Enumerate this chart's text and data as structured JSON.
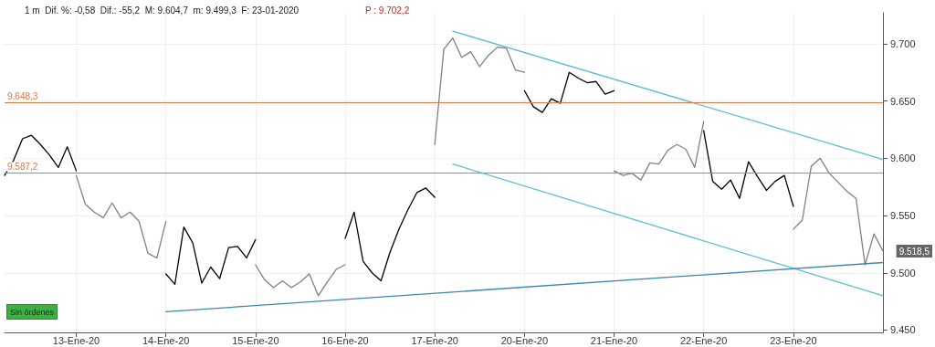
{
  "chart_data": {
    "type": "line",
    "title": "1 m  Dif. %: -0,58  Dif.: -55,2  M: 9.604,7  m: 9.499,3  F: 23-01-2020",
    "subtitle": "P : 9.702,2",
    "categories": [
      null,
      null,
      null,
      null,
      null,
      null,
      null,
      null,
      "13-Ene-20",
      null,
      null,
      null,
      null,
      null,
      null,
      null,
      null,
      null,
      "14-Ene-20",
      null,
      null,
      null,
      null,
      null,
      null,
      null,
      null,
      null,
      "15-Ene-20",
      null,
      null,
      null,
      null,
      null,
      null,
      null,
      null,
      null,
      "16-Ene-20",
      null,
      null,
      null,
      null,
      null,
      null,
      null,
      null,
      null,
      "17-Ene-20",
      null,
      null,
      null,
      null,
      null,
      null,
      null,
      null,
      null,
      "20-Ene-20",
      null,
      null,
      null,
      null,
      null,
      null,
      null,
      null,
      null,
      "21-Ene-20",
      null,
      null,
      null,
      null,
      null,
      null,
      null,
      null,
      null,
      "22-Ene-20",
      null,
      null,
      null,
      null,
      null,
      null,
      null,
      null,
      null,
      "23-Ene-20",
      null,
      null,
      null,
      null,
      null,
      null,
      null,
      null,
      null,
      null
    ],
    "ylim": [
      9448,
      9727
    ],
    "yticks": [
      {
        "value": 9450,
        "label": "9.450"
      },
      {
        "value": 9500,
        "label": "9.500"
      },
      {
        "value": 9550,
        "label": "9.550"
      },
      {
        "value": 9600,
        "label": "9.600"
      },
      {
        "value": 9650,
        "label": "9.650"
      },
      {
        "value": 9700,
        "label": "9.700"
      }
    ],
    "grid": true,
    "marker": "none",
    "series": [
      {
        "color": "#000000",
        "values": [
          9585,
          9598,
          9617,
          9620,
          9612,
          9603,
          9592,
          9610,
          9589,
          null,
          null,
          null,
          null,
          null,
          null,
          null,
          null,
          null,
          null,
          null,
          null,
          null,
          null,
          null,
          null,
          null,
          null,
          null,
          null,
          null,
          null,
          null,
          null,
          null,
          null,
          null,
          null,
          null,
          null,
          null,
          null,
          null,
          null,
          null,
          null,
          null,
          null,
          null,
          null,
          null,
          null,
          null,
          null,
          null,
          null,
          null,
          null,
          null,
          null,
          null,
          null,
          null,
          null,
          null,
          null,
          null,
          null,
          null,
          null,
          null,
          null,
          null,
          null,
          null,
          null,
          null,
          null,
          null,
          null,
          null,
          null,
          null,
          null,
          null,
          null,
          null,
          null,
          null,
          null,
          null,
          null,
          null,
          null,
          null,
          null,
          null,
          null,
          null,
          null
        ]
      },
      {
        "color": "#808080",
        "values": [
          null,
          null,
          null,
          null,
          null,
          null,
          null,
          null,
          9585,
          9560,
          9553,
          9548,
          9561,
          9548,
          9553,
          9545,
          9517,
          9513,
          9545,
          null,
          null,
          null,
          null,
          null,
          null,
          null,
          null,
          null,
          null,
          null,
          null,
          null,
          null,
          null,
          null,
          null,
          null,
          null,
          null,
          null,
          null,
          null,
          null,
          null,
          null,
          null,
          null,
          null,
          null,
          null,
          null,
          null,
          null,
          null,
          null,
          null,
          null,
          null,
          null,
          null,
          null,
          null,
          null,
          null,
          null,
          null,
          null,
          null,
          null,
          null,
          null,
          null,
          null,
          null,
          null,
          null,
          null,
          null,
          null,
          null,
          null,
          null,
          null,
          null,
          null,
          null,
          null,
          null,
          null,
          null,
          null,
          null,
          null,
          null,
          null,
          null,
          null,
          null,
          null
        ]
      },
      {
        "color": "#000000",
        "values": [
          null,
          null,
          null,
          null,
          null,
          null,
          null,
          null,
          null,
          null,
          null,
          null,
          null,
          null,
          null,
          null,
          null,
          null,
          9499,
          9490,
          9540,
          9526,
          9491,
          9505,
          9495,
          9522,
          9523,
          9513,
          9529,
          null,
          null,
          null,
          null,
          null,
          null,
          null,
          null,
          null,
          null,
          null,
          null,
          null,
          null,
          null,
          null,
          null,
          null,
          null,
          null,
          null,
          null,
          null,
          null,
          null,
          null,
          null,
          null,
          null,
          null,
          null,
          null,
          null,
          null,
          null,
          null,
          null,
          null,
          null,
          null,
          null,
          null,
          null,
          null,
          null,
          null,
          null,
          null,
          null,
          null,
          null,
          null,
          null,
          null,
          null,
          null,
          null,
          null,
          null,
          null,
          null,
          null,
          null,
          null,
          null,
          null,
          null,
          null,
          null,
          null
        ]
      },
      {
        "color": "#808080",
        "values": [
          null,
          null,
          null,
          null,
          null,
          null,
          null,
          null,
          null,
          null,
          null,
          null,
          null,
          null,
          null,
          null,
          null,
          null,
          null,
          null,
          null,
          null,
          null,
          null,
          null,
          null,
          null,
          null,
          9507,
          9494,
          9487,
          9493,
          9487,
          9492,
          9499,
          9480,
          9492,
          9503,
          9507,
          null,
          null,
          null,
          null,
          null,
          null,
          null,
          null,
          null,
          null,
          null,
          null,
          null,
          null,
          null,
          null,
          null,
          null,
          null,
          null,
          null,
          null,
          null,
          null,
          null,
          null,
          null,
          null,
          null,
          null,
          null,
          null,
          null,
          null,
          null,
          null,
          null,
          null,
          null,
          null,
          null,
          null,
          null,
          null,
          null,
          null,
          null,
          null,
          null,
          null,
          null,
          null,
          null,
          null,
          null,
          null,
          null,
          null,
          null,
          null
        ]
      },
      {
        "color": "#000000",
        "values": [
          null,
          null,
          null,
          null,
          null,
          null,
          null,
          null,
          null,
          null,
          null,
          null,
          null,
          null,
          null,
          null,
          null,
          null,
          null,
          null,
          null,
          null,
          null,
          null,
          null,
          null,
          null,
          null,
          null,
          null,
          null,
          null,
          null,
          null,
          null,
          null,
          null,
          null,
          9530,
          9553,
          9510,
          9500,
          9493,
          9518,
          9538,
          9555,
          9570,
          9574,
          9566,
          null,
          null,
          null,
          null,
          null,
          null,
          null,
          null,
          null,
          null,
          null,
          null,
          null,
          null,
          null,
          null,
          null,
          null,
          null,
          null,
          null,
          null,
          null,
          null,
          null,
          null,
          null,
          null,
          null,
          null,
          null,
          null,
          null,
          null,
          null,
          null,
          null,
          null,
          null,
          null,
          null,
          null,
          null,
          null,
          null,
          null,
          null,
          null,
          null,
          null
        ]
      },
      {
        "color": "#808080",
        "values": [
          null,
          null,
          null,
          null,
          null,
          null,
          null,
          null,
          null,
          null,
          null,
          null,
          null,
          null,
          null,
          null,
          null,
          null,
          null,
          null,
          null,
          null,
          null,
          null,
          null,
          null,
          null,
          null,
          null,
          null,
          null,
          null,
          null,
          null,
          null,
          null,
          null,
          null,
          null,
          null,
          null,
          null,
          null,
          null,
          null,
          null,
          null,
          null,
          9612,
          9695,
          9705,
          9688,
          9693,
          9680,
          9690,
          9697,
          9696,
          9677,
          9675,
          null,
          null,
          null,
          null,
          null,
          null,
          null,
          null,
          null,
          null,
          null,
          null,
          null,
          null,
          null,
          null,
          null,
          null,
          null,
          null,
          null,
          null,
          null,
          null,
          null,
          null,
          null,
          null,
          null,
          null,
          null,
          null,
          null,
          null,
          null,
          null,
          null,
          null,
          null,
          null
        ]
      },
      {
        "color": "#000000",
        "values": [
          null,
          null,
          null,
          null,
          null,
          null,
          null,
          null,
          null,
          null,
          null,
          null,
          null,
          null,
          null,
          null,
          null,
          null,
          null,
          null,
          null,
          null,
          null,
          null,
          null,
          null,
          null,
          null,
          null,
          null,
          null,
          null,
          null,
          null,
          null,
          null,
          null,
          null,
          null,
          null,
          null,
          null,
          null,
          null,
          null,
          null,
          null,
          null,
          null,
          null,
          null,
          null,
          null,
          null,
          null,
          null,
          null,
          null,
          9659,
          9645,
          9640,
          9652,
          9648,
          9675,
          9670,
          9666,
          9667,
          9656,
          9659,
          null,
          null,
          null,
          null,
          null,
          null,
          null,
          null,
          null,
          null,
          null,
          null,
          null,
          null,
          null,
          null,
          null,
          null,
          null,
          null,
          null,
          null,
          null,
          null,
          null,
          null,
          null,
          null,
          null,
          null
        ]
      },
      {
        "color": "#808080",
        "values": [
          null,
          null,
          null,
          null,
          null,
          null,
          null,
          null,
          null,
          null,
          null,
          null,
          null,
          null,
          null,
          null,
          null,
          null,
          null,
          null,
          null,
          null,
          null,
          null,
          null,
          null,
          null,
          null,
          null,
          null,
          null,
          null,
          null,
          null,
          null,
          null,
          null,
          null,
          null,
          null,
          null,
          null,
          null,
          null,
          null,
          null,
          null,
          null,
          null,
          null,
          null,
          null,
          null,
          null,
          null,
          null,
          null,
          null,
          null,
          null,
          null,
          null,
          null,
          null,
          null,
          null,
          null,
          null,
          9589,
          9585,
          9587,
          9581,
          9596,
          9595,
          9607,
          9612,
          9608,
          9592,
          9632,
          null,
          null,
          null,
          null,
          null,
          null,
          null,
          null,
          null,
          null,
          null,
          null,
          null,
          null,
          null,
          null,
          null,
          null,
          null,
          null
        ]
      },
      {
        "color": "#000000",
        "values": [
          null,
          null,
          null,
          null,
          null,
          null,
          null,
          null,
          null,
          null,
          null,
          null,
          null,
          null,
          null,
          null,
          null,
          null,
          null,
          null,
          null,
          null,
          null,
          null,
          null,
          null,
          null,
          null,
          null,
          null,
          null,
          null,
          null,
          null,
          null,
          null,
          null,
          null,
          null,
          null,
          null,
          null,
          null,
          null,
          null,
          null,
          null,
          null,
          null,
          null,
          null,
          null,
          null,
          null,
          null,
          null,
          null,
          null,
          null,
          null,
          null,
          null,
          null,
          null,
          null,
          null,
          null,
          null,
          null,
          null,
          null,
          null,
          null,
          null,
          null,
          null,
          null,
          null,
          9624,
          9580,
          9573,
          9581,
          9565,
          9597,
          9584,
          9572,
          9580,
          9585,
          9558,
          null,
          null,
          null,
          null,
          null,
          null,
          null,
          null,
          null,
          null
        ]
      },
      {
        "color": "#808080",
        "values": [
          null,
          null,
          null,
          null,
          null,
          null,
          null,
          null,
          null,
          null,
          null,
          null,
          null,
          null,
          null,
          null,
          null,
          null,
          null,
          null,
          null,
          null,
          null,
          null,
          null,
          null,
          null,
          null,
          null,
          null,
          null,
          null,
          null,
          null,
          null,
          null,
          null,
          null,
          null,
          null,
          null,
          null,
          null,
          null,
          null,
          null,
          null,
          null,
          null,
          null,
          null,
          null,
          null,
          null,
          null,
          null,
          null,
          null,
          null,
          null,
          null,
          null,
          null,
          null,
          null,
          null,
          null,
          null,
          null,
          null,
          null,
          null,
          null,
          null,
          null,
          null,
          null,
          null,
          null,
          null,
          null,
          null,
          null,
          null,
          null,
          null,
          null,
          null,
          9538,
          9546,
          9593,
          9600,
          9587,
          9579,
          9571,
          9565,
          9507,
          9534,
          9519
        ]
      },
      {
        "color": "#5bbcd8",
        "values": [
          null,
          null,
          null,
          null,
          null,
          null,
          null,
          null,
          null,
          null,
          null,
          null,
          null,
          null,
          null,
          null,
          null,
          null,
          null,
          null,
          null,
          null,
          null,
          null,
          null,
          null,
          null,
          null,
          null,
          null,
          null,
          null,
          null,
          null,
          null,
          null,
          null,
          null,
          null,
          null,
          null,
          null,
          null,
          null,
          null,
          null,
          null,
          null,
          null,
          null,
          9711,
          null,
          null,
          null,
          null,
          null,
          null,
          null,
          null,
          null,
          null,
          null,
          null,
          null,
          null,
          null,
          null,
          null,
          null,
          null,
          null,
          null,
          null,
          null,
          null,
          null,
          null,
          null,
          null,
          null,
          null,
          null,
          null,
          null,
          null,
          null,
          null,
          null,
          null,
          null,
          null,
          null,
          null,
          null,
          null,
          null,
          null,
          null,
          9599
        ]
      },
      {
        "color": "#5bbcd8",
        "values": [
          null,
          null,
          null,
          null,
          null,
          null,
          null,
          null,
          null,
          null,
          null,
          null,
          null,
          null,
          null,
          null,
          null,
          null,
          null,
          null,
          null,
          null,
          null,
          null,
          null,
          null,
          null,
          null,
          null,
          null,
          null,
          null,
          null,
          null,
          null,
          null,
          null,
          null,
          null,
          null,
          null,
          null,
          null,
          null,
          null,
          null,
          null,
          null,
          null,
          null,
          9595,
          null,
          null,
          null,
          null,
          null,
          null,
          null,
          null,
          null,
          null,
          null,
          null,
          null,
          null,
          null,
          null,
          null,
          null,
          null,
          null,
          null,
          null,
          null,
          null,
          null,
          null,
          null,
          null,
          null,
          null,
          null,
          null,
          null,
          null,
          null,
          null,
          null,
          null,
          null,
          null,
          null,
          null,
          null,
          null,
          null,
          null,
          null,
          9480
        ]
      },
      {
        "color": "#3a86b4",
        "values": [
          null,
          null,
          null,
          null,
          null,
          null,
          null,
          null,
          null,
          null,
          null,
          null,
          null,
          null,
          null,
          null,
          null,
          null,
          9466,
          null,
          null,
          null,
          null,
          null,
          null,
          null,
          null,
          null,
          null,
          null,
          null,
          null,
          null,
          null,
          null,
          null,
          null,
          null,
          null,
          null,
          null,
          null,
          null,
          null,
          null,
          null,
          null,
          null,
          null,
          null,
          null,
          null,
          null,
          null,
          null,
          null,
          null,
          null,
          null,
          null,
          null,
          null,
          null,
          null,
          null,
          null,
          null,
          null,
          null,
          null,
          null,
          null,
          null,
          null,
          null,
          null,
          null,
          null,
          null,
          null,
          null,
          null,
          null,
          null,
          null,
          null,
          null,
          null,
          null,
          null,
          null,
          null,
          null,
          null,
          null,
          null,
          null,
          null,
          9509
        ]
      }
    ],
    "ref_lines": [
      {
        "axis": "y",
        "value": 9648.3,
        "label": "9.648,3",
        "color": "#e07848"
      },
      {
        "axis": "y",
        "value": 9587.2,
        "label": "9.587,2",
        "color": "#e07848"
      }
    ],
    "annotations": [
      "9.518,5",
      "Sin órdenes"
    ]
  }
}
